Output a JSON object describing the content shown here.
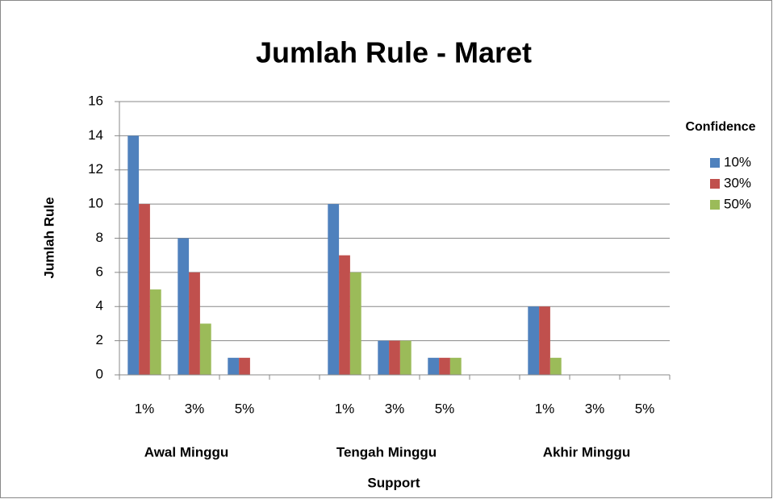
{
  "chart_data": {
    "type": "bar",
    "title": "Jumlah Rule - Maret",
    "x_label": "Support",
    "y_label": "Jumlah Rule",
    "legend_title": "Confidence",
    "categories": [
      "1%",
      "3%",
      "5%",
      null,
      "1%",
      "3%",
      "5%",
      null,
      "1%",
      "3%",
      "5%"
    ],
    "group_labels": [
      "Awal Minggu",
      "Tengah Minggu",
      "Akhir Minggu"
    ],
    "series": [
      {
        "name": "10%",
        "color": "#4f81bd",
        "values": [
          14,
          8,
          1,
          null,
          10,
          2,
          1,
          null,
          4,
          0,
          0
        ]
      },
      {
        "name": "30%",
        "color": "#c0504d",
        "values": [
          10,
          6,
          1,
          null,
          7,
          2,
          1,
          null,
          4,
          0,
          0
        ]
      },
      {
        "name": "50%",
        "color": "#9bbb59",
        "values": [
          5,
          3,
          0,
          null,
          6,
          2,
          1,
          null,
          1,
          0,
          0
        ]
      }
    ],
    "ylim": [
      0,
      16
    ],
    "yticks": [
      0,
      2,
      4,
      6,
      8,
      10,
      12,
      14,
      16
    ],
    "grid": true,
    "legend": "right"
  }
}
